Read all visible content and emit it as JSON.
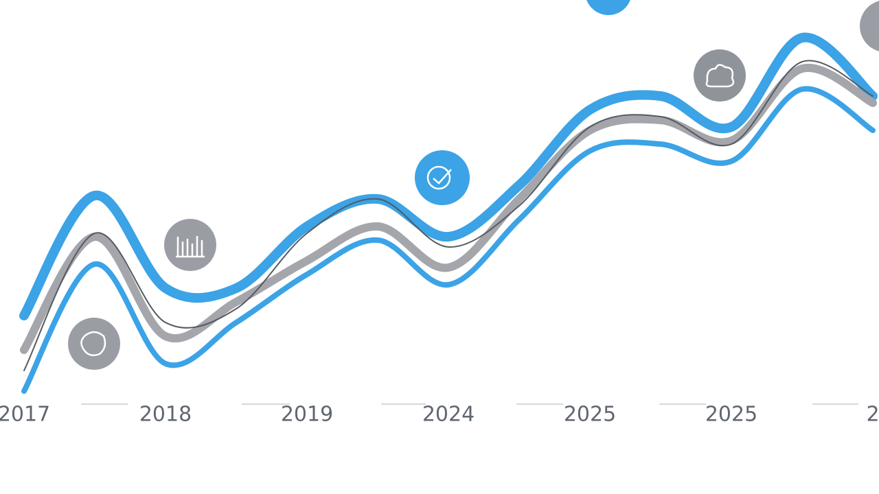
{
  "chart_data": {
    "type": "line",
    "categories": [
      "2017",
      null,
      "2018",
      null,
      "2019",
      null,
      "2024",
      null,
      "2025",
      null,
      "2025",
      null,
      "2"
    ],
    "ylim": [
      0,
      620
    ],
    "series": [
      {
        "color": "#3ba3e6",
        "values": [
          160,
          335,
          200,
          200,
          290,
          330,
          275,
          350,
          460,
          480,
          435,
          565,
          480
        ]
      },
      {
        "color": "#a4a6ab",
        "values": [
          110,
          275,
          130,
          180,
          240,
          290,
          230,
          330,
          430,
          445,
          415,
          520,
          470
        ]
      },
      {
        "color": "#555a60",
        "values": [
          80,
          280,
          150,
          170,
          280,
          330,
          260,
          320,
          435,
          450,
          410,
          530,
          480
        ]
      },
      {
        "color": "#3ba3e6",
        "values": [
          50,
          235,
          90,
          150,
          220,
          270,
          205,
          300,
          400,
          410,
          385,
          490,
          430
        ]
      }
    ]
  }
}
